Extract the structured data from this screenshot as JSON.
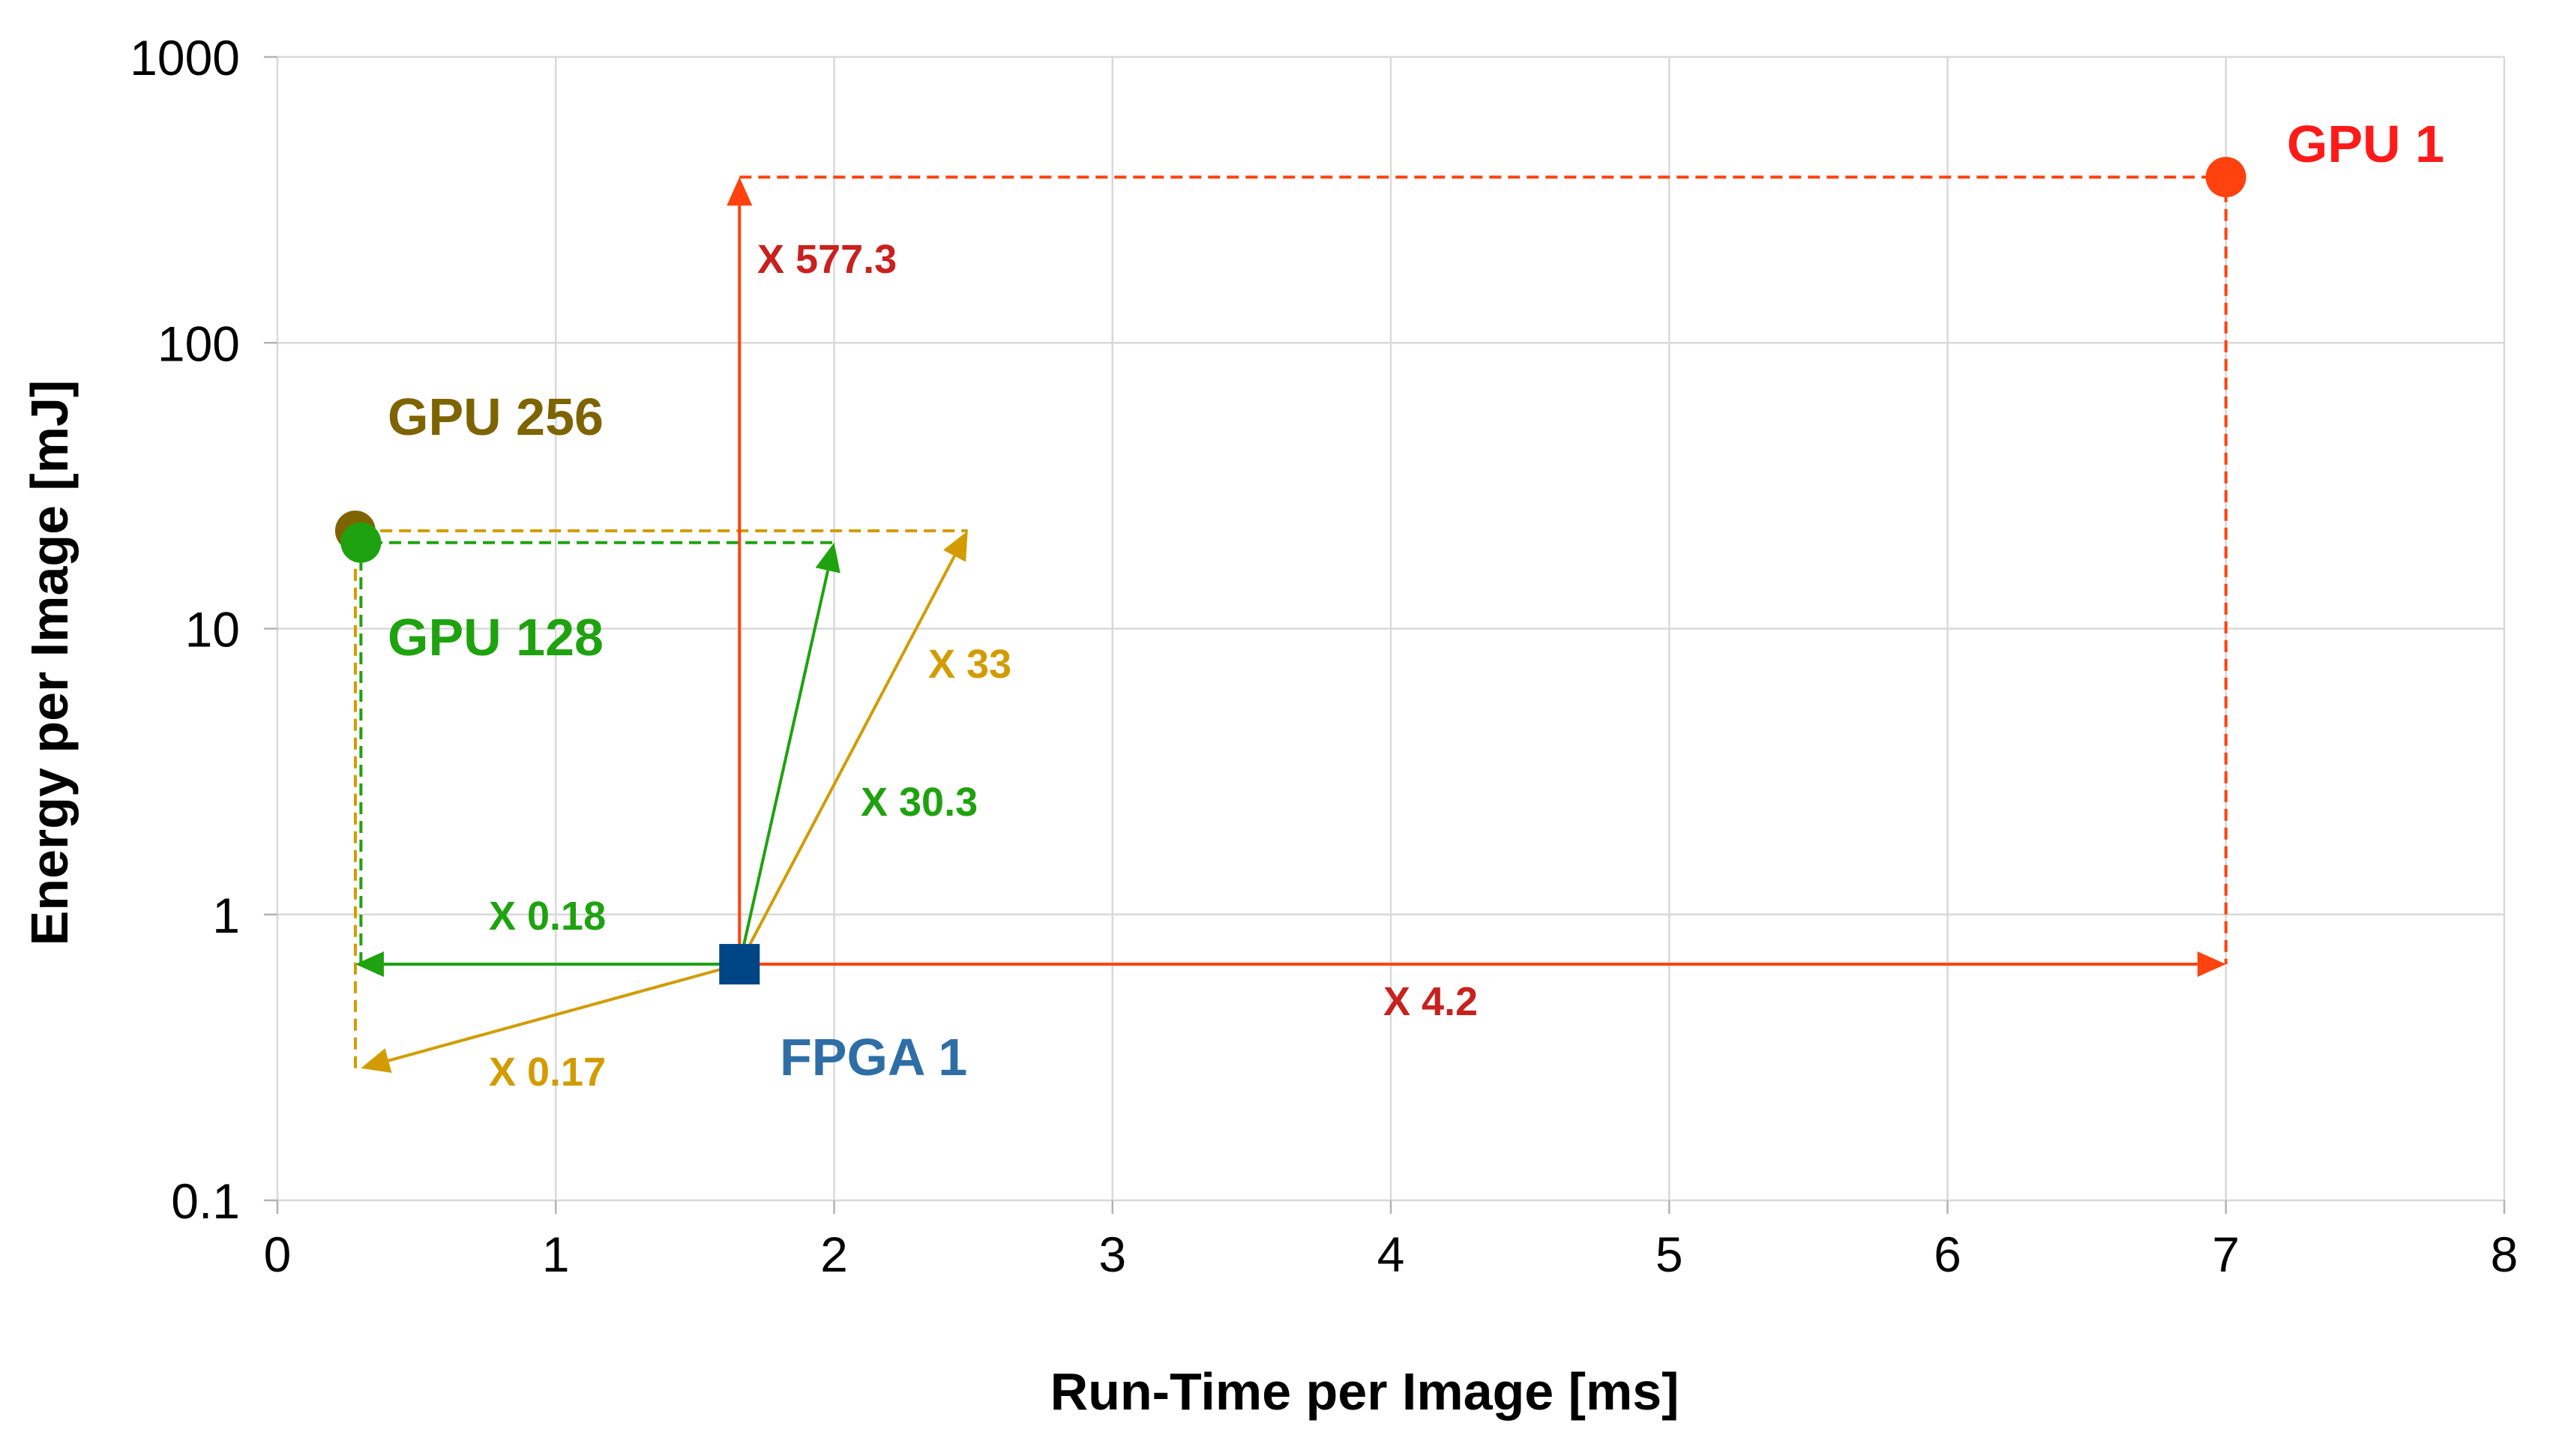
{
  "chart_data": {
    "type": "scatter",
    "xlabel": "Run-Time per Image [ms]",
    "ylabel": "Energy per Image [mJ]",
    "xlim": [
      0,
      8
    ],
    "ylim": [
      0.1,
      1000
    ],
    "yscale": "log",
    "grid": true,
    "x_ticks": [
      "0",
      "1",
      "2",
      "3",
      "4",
      "5",
      "6",
      "7",
      "8"
    ],
    "y_ticks": [
      "0.1",
      "1",
      "10",
      "100",
      "1000"
    ],
    "x_tick_values": [
      0,
      1,
      2,
      3,
      4,
      5,
      6,
      7,
      8
    ],
    "y_tick_values": [
      0.1,
      1,
      10,
      100,
      1000
    ],
    "points": [
      {
        "label": "FPGA 1",
        "x": 1.66,
        "y": 0.67,
        "marker": "square",
        "color": "#004586",
        "label_color": "#2e6ea6"
      },
      {
        "label": "GPU 1",
        "x": 7.0,
        "y": 380,
        "marker": "circle",
        "color": "#ff420e",
        "label_color": "#ff1a1a"
      },
      {
        "label": "GPU 256",
        "x": 0.28,
        "y": 22,
        "marker": "circle",
        "color": "#7e6400",
        "label_color": "#7e6400"
      },
      {
        "label": "GPU 128",
        "x": 0.3,
        "y": 20,
        "marker": "circle",
        "color": "#1fa20f",
        "label_color": "#1fa20f"
      }
    ],
    "annotations": [
      {
        "text": "X 577.3",
        "color": "#c9211e"
      },
      {
        "text": "X 4.2",
        "color": "#c9211e"
      },
      {
        "text": "X 33",
        "color": "#d29c00"
      },
      {
        "text": "X 30.3",
        "color": "#1fa20f"
      },
      {
        "text": "X 0.18",
        "color": "#1fa20f"
      },
      {
        "text": "X 0.17",
        "color": "#d29c00"
      }
    ],
    "arrows": [
      {
        "from": [
          1.66,
          0.67
        ],
        "to": [
          1.66,
          380
        ],
        "color": "#ff420e"
      },
      {
        "from": [
          1.66,
          0.67
        ],
        "to": [
          7.0,
          0.67
        ],
        "color": "#ff420e"
      },
      {
        "from": [
          1.66,
          0.67
        ],
        "to": [
          2.0,
          20
        ],
        "color": "#1fa20f"
      },
      {
        "from": [
          1.66,
          0.67
        ],
        "to": [
          2.48,
          22
        ],
        "color": "#d29c00"
      },
      {
        "from": [
          1.66,
          0.67
        ],
        "to": [
          0.28,
          0.67
        ],
        "color": "#1fa20f"
      },
      {
        "from": [
          1.66,
          0.67
        ],
        "to": [
          0.3,
          0.29
        ],
        "color": "#d29c00"
      }
    ],
    "dashed_guides": [
      {
        "points": [
          [
            1.66,
            380
          ],
          [
            7.0,
            380
          ],
          [
            7.0,
            0.67
          ]
        ],
        "color": "#ff420e"
      },
      {
        "points": [
          [
            0.28,
            0.29
          ],
          [
            0.28,
            22
          ],
          [
            2.48,
            22
          ]
        ],
        "color": "#d29c00"
      },
      {
        "points": [
          [
            0.3,
            0.67
          ],
          [
            0.3,
            20
          ],
          [
            2.0,
            20
          ]
        ],
        "color": "#1fa20f"
      }
    ]
  }
}
